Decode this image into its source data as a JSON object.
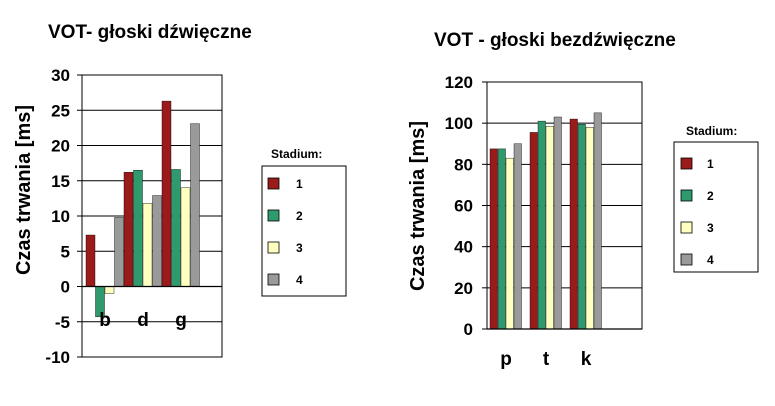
{
  "colors": {
    "series": [
      "#9b1b1b",
      "#2f9a6e",
      "#ffffc0",
      "#9a9a9a"
    ],
    "grid": "#000000",
    "plot_background": "#ffffff"
  },
  "chart_data": [
    {
      "type": "bar",
      "title": "VOT- głoski dźwięczne",
      "xlabel": "",
      "ylabel": "Czas trwania [ms]",
      "ylim": [
        -10,
        30
      ],
      "yticks": [
        "30",
        "25",
        "20",
        "15",
        "10",
        "5",
        "0",
        "-5",
        "-10"
      ],
      "categories": [
        "b",
        "d",
        "g"
      ],
      "grid": true,
      "legend": {
        "title": "Stadium:",
        "position": "right"
      },
      "series": [
        {
          "name": "1",
          "values": [
            7.3,
            16.2,
            26.3
          ]
        },
        {
          "name": "2",
          "values": [
            -4.3,
            16.5,
            16.6
          ]
        },
        {
          "name": "3",
          "values": [
            -1.0,
            11.8,
            14.0
          ]
        },
        {
          "name": "4",
          "values": [
            9.8,
            12.9,
            23.1
          ]
        }
      ]
    },
    {
      "type": "bar",
      "title": "VOT - głoski bezdźwięczne",
      "xlabel": "",
      "ylabel": "Czas trwania [ms]",
      "ylim": [
        0,
        120
      ],
      "yticks": [
        "120",
        "100",
        "80",
        "60",
        "40",
        "20",
        "0"
      ],
      "categories": [
        "p",
        "t",
        "k"
      ],
      "grid": true,
      "legend": {
        "title": "Stadium:",
        "position": "right"
      },
      "series": [
        {
          "name": "1",
          "values": [
            87.5,
            95.5,
            102
          ]
        },
        {
          "name": "2",
          "values": [
            87.5,
            101,
            99.5
          ]
        },
        {
          "name": "3",
          "values": [
            83,
            98.5,
            98
          ]
        },
        {
          "name": "4",
          "values": [
            90,
            103,
            105
          ]
        }
      ]
    }
  ]
}
